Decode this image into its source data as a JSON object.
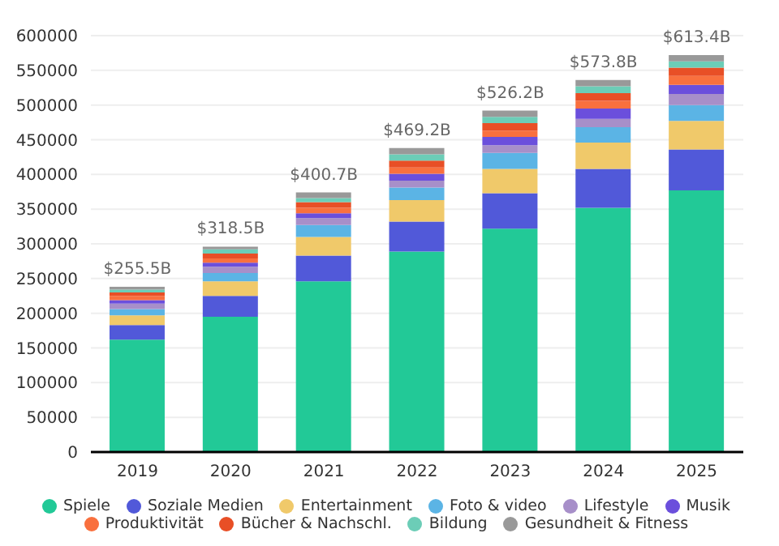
{
  "chart_data": {
    "type": "bar",
    "stacked": true,
    "categories": [
      "2019",
      "2020",
      "2021",
      "2022",
      "2023",
      "2024",
      "2025"
    ],
    "ylim": [
      0,
      600000
    ],
    "yticks": [
      0,
      50000,
      100000,
      150000,
      200000,
      250000,
      300000,
      350000,
      400000,
      450000,
      500000,
      550000,
      600000
    ],
    "grid": "y",
    "legend": "bottom",
    "marker": "circle",
    "annotations": [
      {
        "text": "$255.5B",
        "x": "2019",
        "y": 238000
      },
      {
        "text": "$318.5B",
        "x": "2020",
        "y": 296000
      },
      {
        "text": "$400.7B",
        "x": "2021",
        "y": 374000
      },
      {
        "text": "$469.2B",
        "x": "2022",
        "y": 438000
      },
      {
        "text": "$526.2B",
        "x": "2023",
        "y": 492000
      },
      {
        "text": "$573.8B",
        "x": "2024",
        "y": 536000
      },
      {
        "text": "$613.4B",
        "x": "2025",
        "y": 572000
      }
    ],
    "series": [
      {
        "name": "Spiele",
        "color": "#22c997",
        "values": [
          162000,
          195000,
          246000,
          289000,
          322000,
          352000,
          377000
        ]
      },
      {
        "name": "Soziale Medien",
        "color": "#5159d9",
        "values": [
          21000,
          30000,
          37000,
          43000,
          51000,
          56000,
          59000
        ]
      },
      {
        "name": "Entertainment",
        "color": "#f0c96a",
        "values": [
          14000,
          21000,
          27000,
          31000,
          35000,
          38000,
          41000
        ]
      },
      {
        "name": "Foto & video",
        "color": "#5bb4e5",
        "values": [
          9000,
          12000,
          17000,
          18000,
          23000,
          22000,
          23000
        ]
      },
      {
        "name": "Lifestyle",
        "color": "#a78fc9",
        "values": [
          8000,
          9000,
          10000,
          10000,
          11000,
          12000,
          16000
        ]
      },
      {
        "name": "Musik",
        "color": "#6b4fdc",
        "values": [
          5000,
          6000,
          7000,
          10000,
          12000,
          15000,
          13000
        ]
      },
      {
        "name": "Produktivität",
        "color": "#f9703e",
        "values": [
          6000,
          6000,
          8000,
          9000,
          9000,
          11000,
          13000
        ]
      },
      {
        "name": "Bücher & Nachschl.",
        "color": "#e84f26",
        "values": [
          5000,
          7000,
          8000,
          10000,
          11000,
          11000,
          12000
        ]
      },
      {
        "name": "Bildung",
        "color": "#6ccdb7",
        "values": [
          4000,
          6000,
          6000,
          9000,
          9000,
          10000,
          9000
        ]
      },
      {
        "name": "Gesundheit & Fitness",
        "color": "#999999",
        "values": [
          4000,
          4000,
          8000,
          9000,
          9000,
          9000,
          9000
        ]
      }
    ]
  }
}
